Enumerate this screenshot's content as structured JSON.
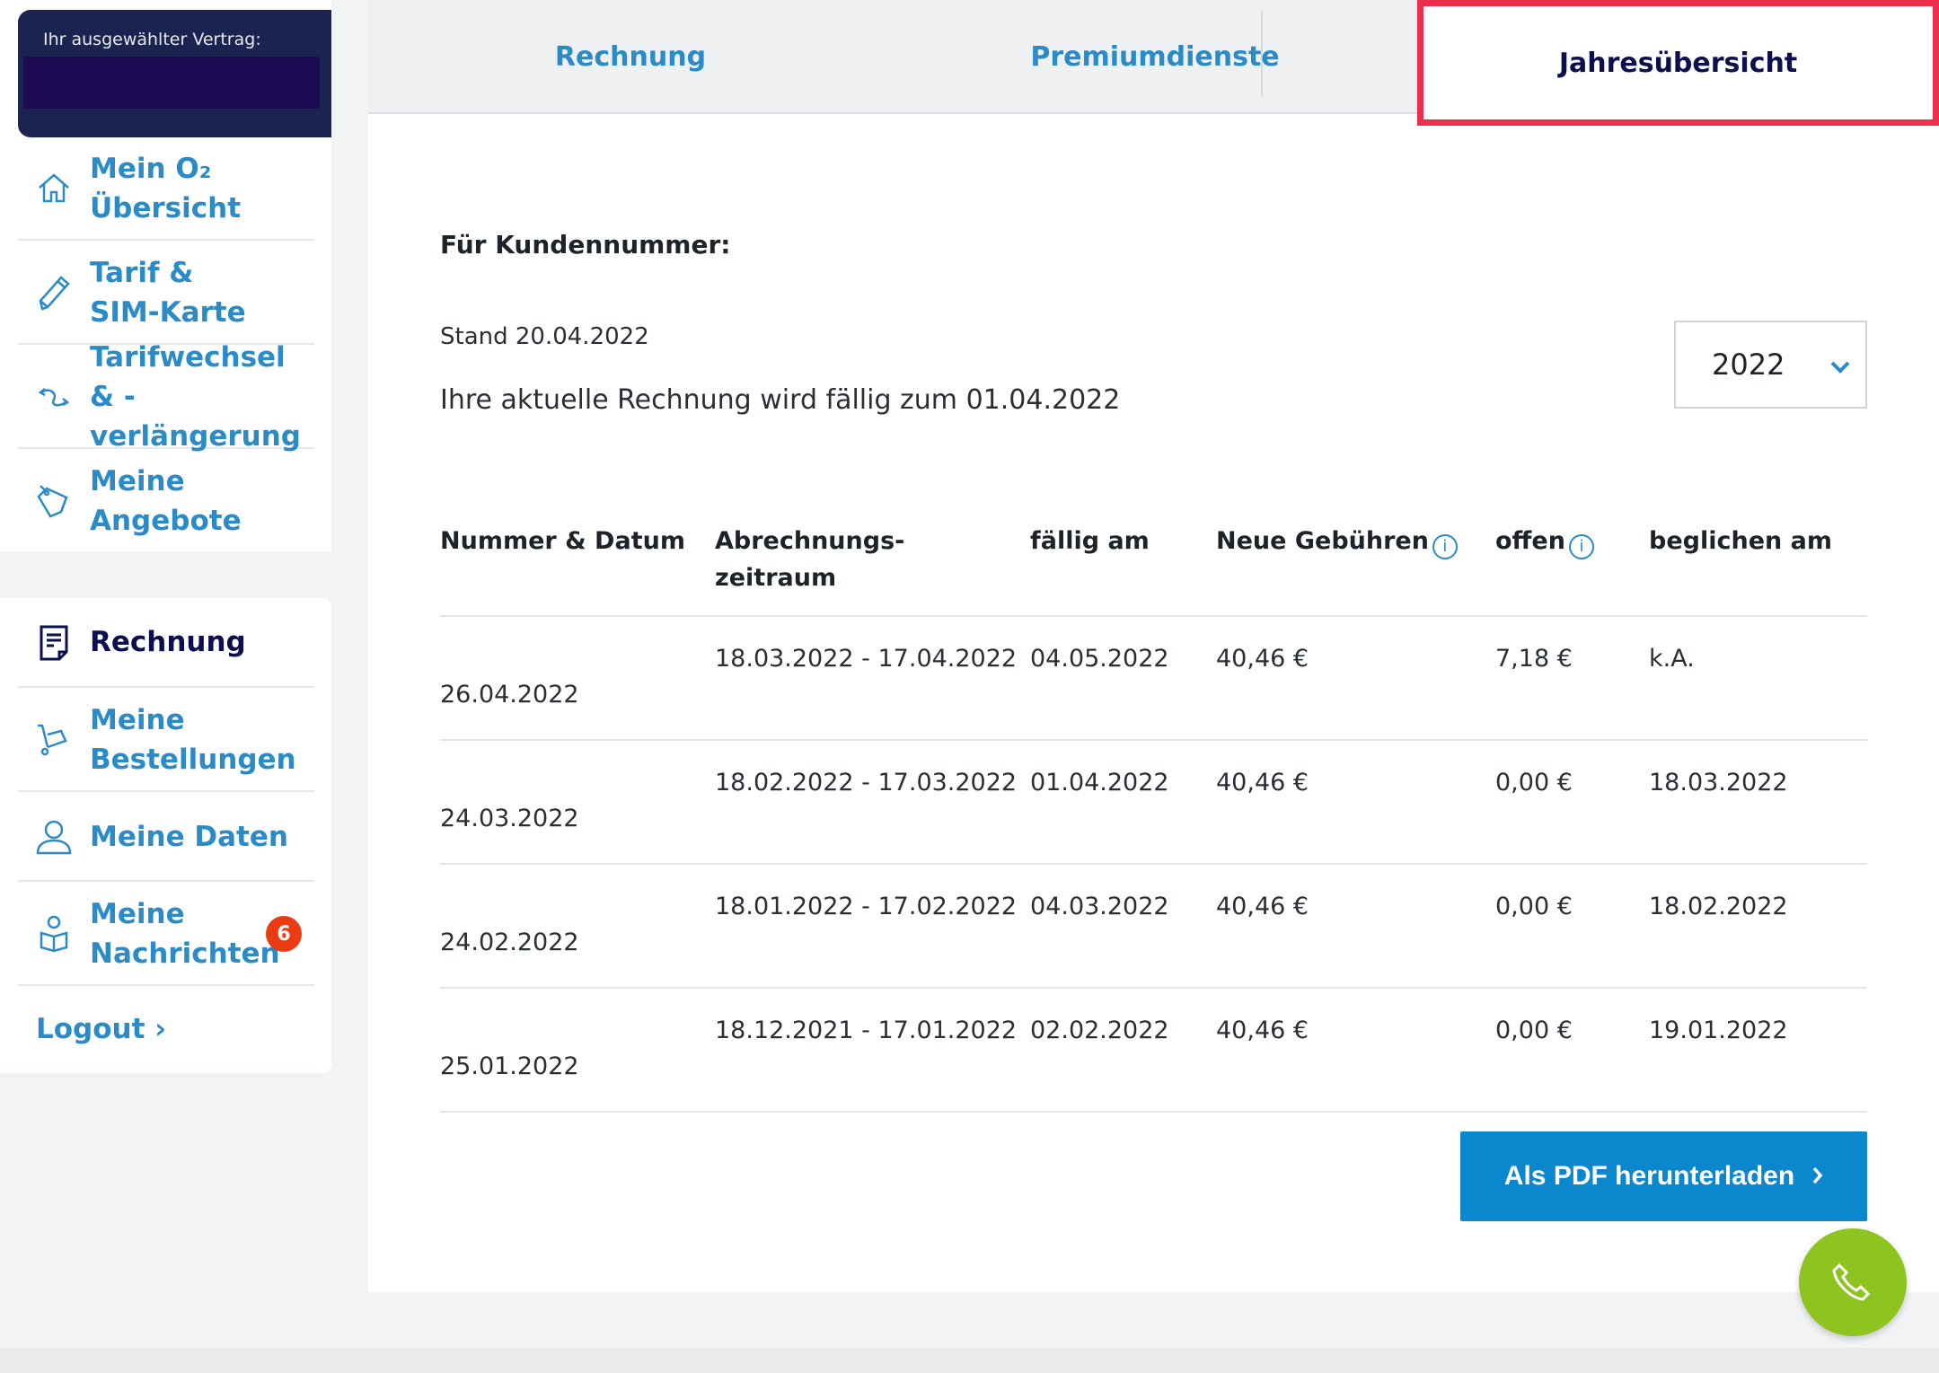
{
  "sidebar": {
    "contract_label": "Ihr ausgewählter Vertrag:",
    "items": [
      {
        "label": "Mein O₂ Übersicht",
        "icon": "home-icon"
      },
      {
        "label": "Tarif & SIM-Karte",
        "icon": "pencil-icon"
      },
      {
        "label": "Tarifwechsel & -verlängerung",
        "icon": "swap-icon"
      },
      {
        "label": "Meine Angebote",
        "icon": "tag-icon"
      },
      {
        "label": "Rechnung",
        "icon": "invoice-icon"
      },
      {
        "label": "Meine Bestellungen",
        "icon": "cart-icon"
      },
      {
        "label": "Meine Daten",
        "icon": "user-icon"
      },
      {
        "label": "Meine Nachrichten",
        "icon": "reader-icon",
        "badge": "6"
      }
    ],
    "logout": "Logout ›"
  },
  "tabs": [
    "Rechnung",
    "Premiumdienste",
    "Jahresübersicht"
  ],
  "main": {
    "customer_label": "Für Kundennummer:",
    "stand": "Stand 20.04.2022",
    "due_notice": "Ihre aktuelle Rechnung wird fällig zum 01.04.2022",
    "year": "2022",
    "pdf_button": "Als PDF herunterladen"
  },
  "table": {
    "headers": [
      "Nummer & Datum",
      "Abrechnungs-\nzeitraum",
      "fällig am",
      "Neue Gebühren",
      "offen",
      "beglichen am"
    ],
    "rows": [
      [
        "26.04.2022",
        "18.03.2022 - 17.04.2022",
        "04.05.2022",
        "40,46 €",
        "7,18 €",
        "k.A."
      ],
      [
        "24.03.2022",
        "18.02.2022 - 17.03.2022",
        "01.04.2022",
        "40,46 €",
        "0,00 €",
        "18.03.2022"
      ],
      [
        "24.02.2022",
        "18.01.2022 - 17.02.2022",
        "04.03.2022",
        "40,46 €",
        "0,00 €",
        "18.02.2022"
      ],
      [
        "25.01.2022",
        "18.12.2021 - 17.01.2022",
        "02.02.2022",
        "40,46 €",
        "0,00 €",
        "19.01.2022"
      ]
    ]
  },
  "colors": {
    "accent": "#2a8bc7",
    "navy": "#0d0e4d",
    "highlight": "#ee2e4a",
    "button": "#0b87cd",
    "fab": "#8dc41f",
    "badge": "#ea3c12"
  }
}
